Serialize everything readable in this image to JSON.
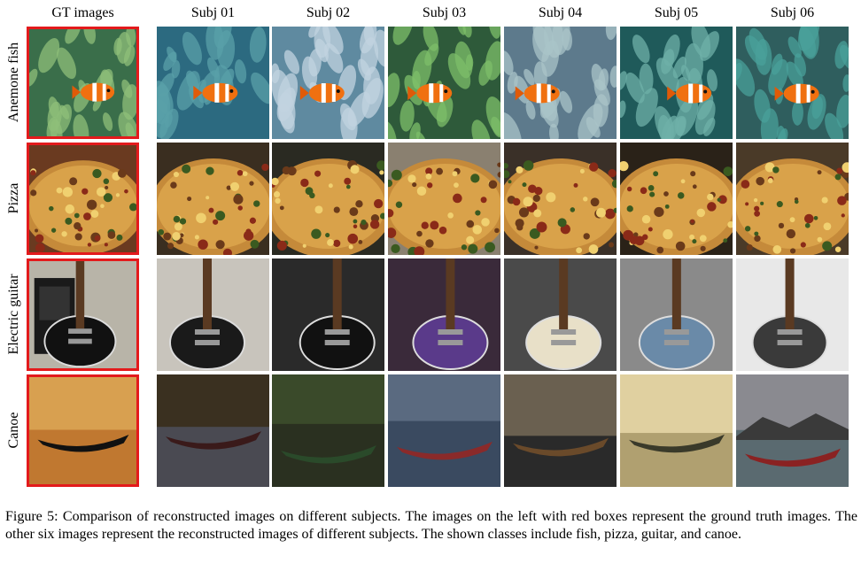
{
  "columns": [
    "GT images",
    "Subj 01",
    "Subj 02",
    "Subj 03",
    "Subj 04",
    "Subj 05",
    "Subj 06"
  ],
  "rows": [
    {
      "label": "Anemone fish",
      "theme": "fish"
    },
    {
      "label": "Pizza",
      "theme": "pizza"
    },
    {
      "label": "Electric guitar",
      "theme": "guitar"
    },
    {
      "label": "Canoe",
      "theme": "canoe"
    }
  ],
  "caption": "Figure 5: Comparison of reconstructed images on different subjects. The images on the left with red boxes represent the ground truth images. The other six images represent the reconstructed images of different subjects. The shown classes include fish, pizza, guitar, and canoe.",
  "colors": {
    "gt_border": "#e31a1c"
  }
}
